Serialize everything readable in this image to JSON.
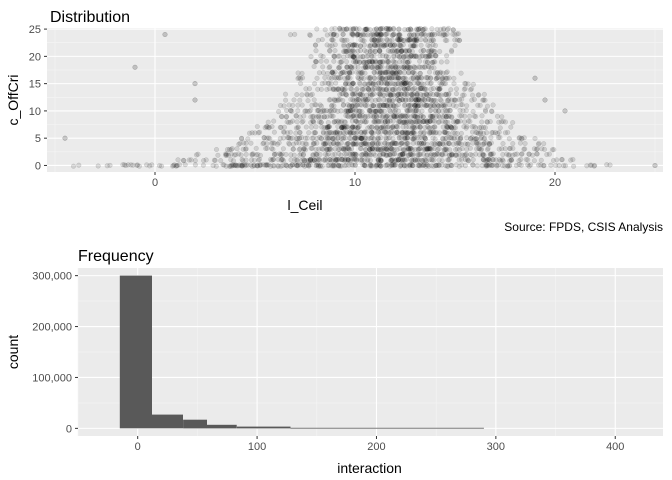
{
  "chart_data": [
    {
      "type": "scatter",
      "title": "Distribution",
      "xlabel": "l_Ceil",
      "ylabel": "c_OffCri",
      "xlim": [
        -5.4,
        25.4
      ],
      "ylim": [
        -1.2,
        25.2
      ],
      "x_ticks": [
        0,
        10,
        20
      ],
      "y_ticks": [
        0,
        5,
        10,
        15,
        20,
        25
      ],
      "point_color": "#000000",
      "point_alpha": 0.12,
      "grid": true,
      "caption": "Source: FPDS, CSIS Analysis",
      "series": [
        {
          "band_points": [
            {
              "y": 0,
              "from": -4.5,
              "to": 23
            },
            {
              "y": 1,
              "from": 1,
              "to": 21
            },
            {
              "y": 2,
              "from": 2,
              "to": 20
            },
            {
              "y": 3,
              "from": 3,
              "to": 20
            },
            {
              "y": 4,
              "from": 3.5,
              "to": 19.5
            },
            {
              "y": 5,
              "from": 4,
              "to": 19
            },
            {
              "y": 6,
              "from": 4.5,
              "to": 18.5
            },
            {
              "y": 7,
              "from": 5,
              "to": 18
            },
            {
              "y": 8,
              "from": 5.5,
              "to": 18
            },
            {
              "y": 9,
              "from": 5.5,
              "to": 17.5
            },
            {
              "y": 10,
              "from": 6,
              "to": 17
            },
            {
              "y": 11,
              "from": 6,
              "to": 17
            },
            {
              "y": 12,
              "from": 6.5,
              "to": 16.5
            },
            {
              "y": 13,
              "from": 6.5,
              "to": 16.5
            },
            {
              "y": 14,
              "from": 7,
              "to": 16
            },
            {
              "y": 15,
              "from": 7,
              "to": 16
            },
            {
              "y": 16,
              "from": 7,
              "to": 16
            },
            {
              "y": 17,
              "from": 7,
              "to": 15.5
            },
            {
              "y": 18,
              "from": 7.5,
              "to": 15
            },
            {
              "y": 19,
              "from": 8,
              "to": 15
            },
            {
              "y": 20,
              "from": 7.5,
              "to": 15
            },
            {
              "y": 21,
              "from": 8,
              "to": 15
            },
            {
              "y": 22,
              "from": 8,
              "to": 15
            },
            {
              "y": 23,
              "from": 8,
              "to": 15.5
            },
            {
              "y": 24,
              "from": 6.5,
              "to": 16
            },
            {
              "y": 25,
              "from": 7,
              "to": 15
            }
          ],
          "outliers": [
            {
              "x": -4.5,
              "y": 5
            },
            {
              "x": -1,
              "y": 18
            },
            {
              "x": 0.5,
              "y": 24
            },
            {
              "x": 25,
              "y": 0
            },
            {
              "x": 20.5,
              "y": 10
            },
            {
              "x": 19.5,
              "y": 12
            },
            {
              "x": 19,
              "y": 16
            },
            {
              "x": 2,
              "y": 12
            },
            {
              "x": 2,
              "y": 15
            }
          ]
        }
      ]
    },
    {
      "type": "bar",
      "title": "Frequency",
      "xlabel": "interaction",
      "ylabel": "count",
      "xlim": [
        -50,
        440
      ],
      "ylim": [
        -15000,
        315000
      ],
      "x_ticks": [
        0,
        100,
        200,
        300,
        400
      ],
      "y_ticks": [
        0,
        100000,
        200000,
        300000
      ],
      "y_tick_labels": [
        "0",
        "100,000",
        "200,000",
        "300,000"
      ],
      "bar_color": "#595959",
      "grid": true,
      "bins": [
        {
          "start": -15,
          "end": 12,
          "value": 300000
        },
        {
          "start": 12,
          "end": 38,
          "value": 27000
        },
        {
          "start": 38,
          "end": 58,
          "value": 17000
        },
        {
          "start": 58,
          "end": 83,
          "value": 7000
        },
        {
          "start": 83,
          "end": 128,
          "value": 3500
        },
        {
          "start": 128,
          "end": 290,
          "value": 1200
        }
      ]
    }
  ]
}
